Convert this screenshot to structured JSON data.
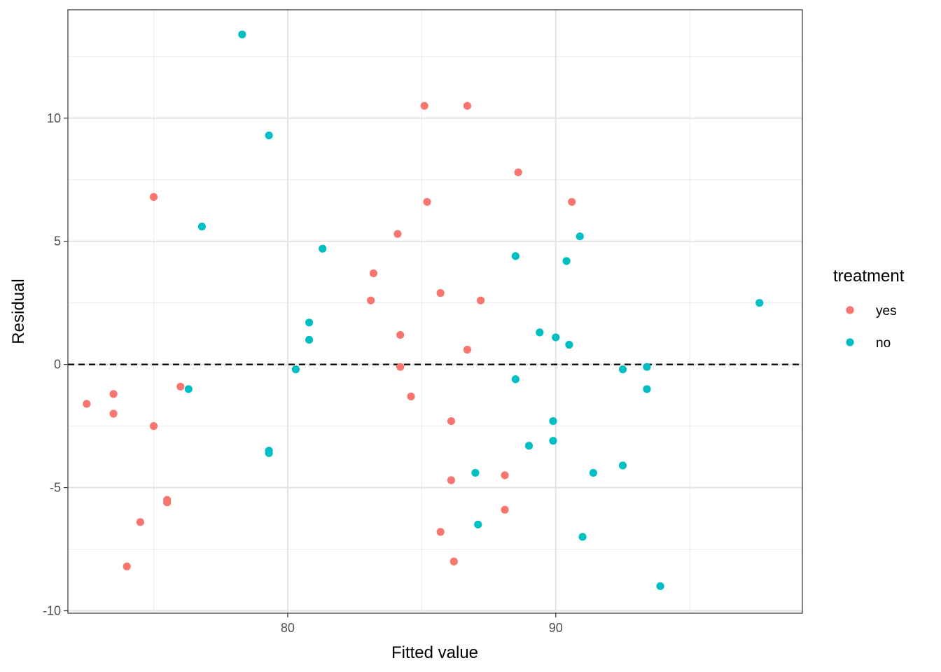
{
  "chart_data": {
    "type": "scatter",
    "xlabel": "Fitted value",
    "ylabel": "Residual",
    "xlim": [
      71.8,
      99.2
    ],
    "ylim": [
      -10.1,
      14.4
    ],
    "x_ticks": [
      80,
      90
    ],
    "x_tick_labels": [
      "80",
      "90"
    ],
    "y_ticks": [
      -10,
      -5,
      0,
      5,
      10
    ],
    "y_tick_labels": [
      "-10",
      "-5",
      "0",
      "5",
      "10"
    ],
    "reference_line": 0,
    "grid": true,
    "legend": {
      "title": "treatment",
      "position": "right"
    },
    "series": [
      {
        "name": "yes",
        "color": "#F8766D",
        "points": [
          [
            72.5,
            -1.6
          ],
          [
            73.5,
            -1.2
          ],
          [
            73.5,
            -2.0
          ],
          [
            75.0,
            6.8
          ],
          [
            75.0,
            -2.5
          ],
          [
            74.5,
            -6.4
          ],
          [
            74.0,
            -8.2
          ],
          [
            75.5,
            -5.5
          ],
          [
            75.5,
            -5.6
          ],
          [
            76.0,
            -0.9
          ],
          [
            83.1,
            2.6
          ],
          [
            83.2,
            3.7
          ],
          [
            84.1,
            5.3
          ],
          [
            84.2,
            1.2
          ],
          [
            84.2,
            -0.1
          ],
          [
            84.6,
            -1.3
          ],
          [
            85.1,
            10.5
          ],
          [
            85.2,
            6.6
          ],
          [
            85.7,
            2.9
          ],
          [
            85.7,
            -6.8
          ],
          [
            86.1,
            -2.3
          ],
          [
            86.1,
            -4.7
          ],
          [
            86.2,
            -8.0
          ],
          [
            86.7,
            10.5
          ],
          [
            86.7,
            0.6
          ],
          [
            87.2,
            2.6
          ],
          [
            88.1,
            -4.5
          ],
          [
            88.1,
            -5.9
          ],
          [
            88.6,
            7.8
          ],
          [
            90.6,
            6.6
          ]
        ]
      },
      {
        "name": "no",
        "color": "#00BFC4",
        "points": [
          [
            76.3,
            -1.0
          ],
          [
            76.8,
            5.6
          ],
          [
            78.3,
            13.4
          ],
          [
            79.3,
            9.3
          ],
          [
            79.3,
            -3.5
          ],
          [
            79.3,
            -3.6
          ],
          [
            80.3,
            -0.2
          ],
          [
            80.8,
            1.7
          ],
          [
            80.8,
            1.0
          ],
          [
            81.3,
            4.7
          ],
          [
            87.0,
            -4.4
          ],
          [
            87.1,
            -6.5
          ],
          [
            88.5,
            4.4
          ],
          [
            88.5,
            -0.6
          ],
          [
            89.0,
            -3.3
          ],
          [
            89.4,
            1.3
          ],
          [
            89.9,
            -2.3
          ],
          [
            89.9,
            -3.1
          ],
          [
            90.0,
            1.1
          ],
          [
            90.4,
            4.2
          ],
          [
            90.5,
            0.8
          ],
          [
            90.9,
            5.2
          ],
          [
            91.0,
            -7.0
          ],
          [
            91.4,
            -4.4
          ],
          [
            92.5,
            -0.2
          ],
          [
            92.5,
            -4.1
          ],
          [
            93.4,
            -0.1
          ],
          [
            93.4,
            -1.0
          ],
          [
            93.9,
            -9.0
          ],
          [
            97.6,
            2.5
          ]
        ]
      }
    ]
  }
}
